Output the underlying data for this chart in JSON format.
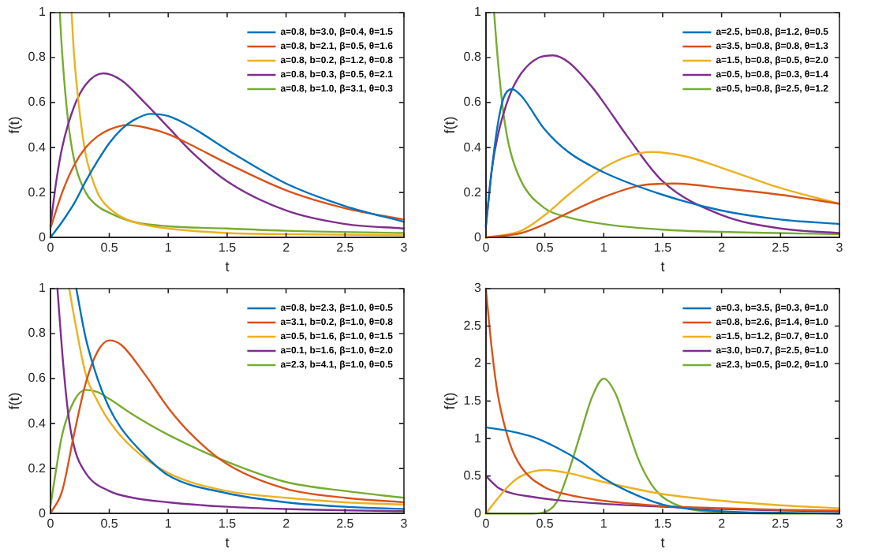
{
  "chart_data": [
    {
      "type": "line",
      "xlabel": "t",
      "ylabel": "f(t)",
      "xlim": [
        0,
        3
      ],
      "xticks": [
        0,
        0.5,
        1,
        1.5,
        2,
        2.5,
        3
      ],
      "ylim": [
        0,
        1
      ],
      "yticks": [
        0,
        0.2,
        0.4,
        0.6,
        0.8,
        1
      ],
      "legend": "top right",
      "marker": "none",
      "series": [
        {
          "name": "a=0.8, b=3.0, β=0.4, θ=1.5",
          "color": "#0072bd",
          "x": [
            0,
            0.1,
            0.2,
            0.3,
            0.4,
            0.5,
            0.6,
            0.7,
            0.85,
            1.0,
            1.2,
            1.5,
            2.0,
            2.5,
            3.0
          ],
          "values": [
            0,
            0.07,
            0.15,
            0.25,
            0.34,
            0.42,
            0.48,
            0.52,
            0.55,
            0.54,
            0.49,
            0.39,
            0.24,
            0.14,
            0.07
          ]
        },
        {
          "name": "a=0.8, b=2.1, β=0.5, θ=1.6",
          "color": "#d95319",
          "x": [
            0,
            0.1,
            0.2,
            0.3,
            0.4,
            0.5,
            0.65,
            0.8,
            1.0,
            1.2,
            1.5,
            2.0,
            2.5,
            3.0
          ],
          "values": [
            0.04,
            0.2,
            0.32,
            0.4,
            0.45,
            0.48,
            0.5,
            0.49,
            0.46,
            0.41,
            0.33,
            0.21,
            0.13,
            0.08
          ]
        },
        {
          "name": "a=0.8, b=0.2, β=1.2, θ=0.8",
          "color": "#edb120",
          "x": [
            0.18,
            0.2,
            0.25,
            0.3,
            0.4,
            0.5,
            0.7,
            1.0,
            1.5,
            2.0,
            3.0
          ],
          "values": [
            1.0,
            0.82,
            0.55,
            0.37,
            0.2,
            0.13,
            0.07,
            0.04,
            0.02,
            0.015,
            0.01
          ]
        },
        {
          "name": "a=0.8, b=0.3, β=0.5, θ=2.1",
          "color": "#7e2f8e",
          "x": [
            0,
            0.05,
            0.1,
            0.2,
            0.3,
            0.45,
            0.6,
            0.8,
            1.0,
            1.2,
            1.5,
            2.0,
            2.5,
            3.0
          ],
          "values": [
            0.05,
            0.25,
            0.4,
            0.58,
            0.68,
            0.73,
            0.7,
            0.6,
            0.49,
            0.38,
            0.25,
            0.12,
            0.06,
            0.04
          ]
        },
        {
          "name": "a=0.8, b=1.0, β=3.1, θ=0.3",
          "color": "#77ac30",
          "x": [
            0.08,
            0.1,
            0.15,
            0.2,
            0.3,
            0.4,
            0.5,
            0.7,
            1.0,
            1.5,
            2.0,
            3.0
          ],
          "values": [
            1.0,
            0.82,
            0.52,
            0.35,
            0.2,
            0.14,
            0.11,
            0.07,
            0.05,
            0.04,
            0.03,
            0.02
          ]
        }
      ]
    },
    {
      "type": "line",
      "xlabel": "t",
      "ylabel": "f(t)",
      "xlim": [
        0,
        3
      ],
      "xticks": [
        0,
        0.5,
        1,
        1.5,
        2,
        2.5,
        3
      ],
      "ylim": [
        0,
        1
      ],
      "yticks": [
        0,
        0.2,
        0.4,
        0.6,
        0.8,
        1
      ],
      "legend": "top right",
      "marker": "none",
      "series": [
        {
          "name": "a=2.5, b=0.8, β=1.2, θ=0.5",
          "color": "#0072bd",
          "x": [
            0,
            0.05,
            0.1,
            0.15,
            0.22,
            0.3,
            0.5,
            0.7,
            1.0,
            1.5,
            2.0,
            2.5,
            3.0
          ],
          "values": [
            0.05,
            0.3,
            0.5,
            0.62,
            0.66,
            0.63,
            0.48,
            0.38,
            0.29,
            0.19,
            0.12,
            0.08,
            0.06
          ]
        },
        {
          "name": "a=3.5, b=0.8, β=0.8, θ=1.3",
          "color": "#d95319",
          "x": [
            0,
            0.3,
            0.5,
            0.7,
            1.0,
            1.3,
            1.6,
            2.0,
            2.5,
            3.0
          ],
          "values": [
            0,
            0.02,
            0.06,
            0.11,
            0.18,
            0.23,
            0.24,
            0.22,
            0.19,
            0.15
          ]
        },
        {
          "name": "a=1.5, b=0.8, β=0.5, θ=2.0",
          "color": "#edb120",
          "x": [
            0,
            0.3,
            0.5,
            0.7,
            1.0,
            1.2,
            1.4,
            1.7,
            2.0,
            2.5,
            3.0
          ],
          "values": [
            0,
            0.03,
            0.1,
            0.19,
            0.31,
            0.36,
            0.38,
            0.36,
            0.31,
            0.22,
            0.15
          ]
        },
        {
          "name": "a=0.5, b=0.8, β=0.3, θ=1.4",
          "color": "#7e2f8e",
          "x": [
            0,
            0.05,
            0.1,
            0.2,
            0.3,
            0.45,
            0.57,
            0.7,
            0.9,
            1.0,
            1.2,
            1.5,
            2.0,
            2.5,
            3.0
          ],
          "values": [
            0.05,
            0.3,
            0.45,
            0.63,
            0.73,
            0.8,
            0.81,
            0.78,
            0.67,
            0.6,
            0.45,
            0.25,
            0.1,
            0.04,
            0.02
          ]
        },
        {
          "name": "a=0.5, b=0.8, β=2.5, θ=1.2",
          "color": "#77ac30",
          "x": [
            0.07,
            0.1,
            0.15,
            0.2,
            0.3,
            0.5,
            0.7,
            1.0,
            1.5,
            2.0,
            3.0
          ],
          "values": [
            1.0,
            0.8,
            0.55,
            0.4,
            0.25,
            0.13,
            0.09,
            0.06,
            0.035,
            0.025,
            0.015
          ]
        }
      ]
    },
    {
      "type": "line",
      "xlabel": "t",
      "ylabel": "f(t)",
      "xlim": [
        0,
        3
      ],
      "xticks": [
        0,
        0.5,
        1,
        1.5,
        2,
        2.5,
        3
      ],
      "ylim": [
        0,
        1
      ],
      "yticks": [
        0,
        0.2,
        0.4,
        0.6,
        0.8,
        1
      ],
      "legend": "top right",
      "marker": "none",
      "series": [
        {
          "name": "a=0.8, b=2.3, β=1.0, θ=0.5",
          "color": "#0072bd",
          "x": [
            0.22,
            0.3,
            0.4,
            0.5,
            0.6,
            0.8,
            1.0,
            1.5,
            2.0,
            2.5,
            3.0
          ],
          "values": [
            1.0,
            0.78,
            0.6,
            0.47,
            0.38,
            0.26,
            0.17,
            0.09,
            0.05,
            0.03,
            0.02
          ]
        },
        {
          "name": "a=3.1, b=0.2, β=1.0, θ=0.8",
          "color": "#d95319",
          "x": [
            0,
            0.1,
            0.2,
            0.3,
            0.4,
            0.5,
            0.6,
            0.8,
            1.0,
            1.2,
            1.5,
            2.0,
            2.5,
            3.0
          ],
          "values": [
            0,
            0.1,
            0.35,
            0.58,
            0.72,
            0.77,
            0.75,
            0.62,
            0.47,
            0.35,
            0.22,
            0.11,
            0.07,
            0.05
          ]
        },
        {
          "name": "a=0.5, b=1.6, β=1.0, θ=1.5",
          "color": "#edb120",
          "x": [
            0.16,
            0.2,
            0.3,
            0.4,
            0.5,
            0.7,
            1.0,
            1.5,
            2.0,
            2.5,
            3.0
          ],
          "values": [
            1.0,
            0.88,
            0.62,
            0.5,
            0.41,
            0.29,
            0.18,
            0.1,
            0.07,
            0.05,
            0.04
          ]
        },
        {
          "name": "a=0.1, b=1.6, β=1.0, θ=2.0",
          "color": "#7e2f8e",
          "x": [
            0.06,
            0.1,
            0.15,
            0.2,
            0.3,
            0.5,
            0.7,
            1.0,
            1.5,
            2.0,
            3.0
          ],
          "values": [
            1.0,
            0.72,
            0.45,
            0.3,
            0.18,
            0.1,
            0.07,
            0.05,
            0.03,
            0.02,
            0.01
          ]
        },
        {
          "name": "a=2.3, b=4.1, β=1.0, θ=0.5",
          "color": "#77ac30",
          "x": [
            0,
            0.05,
            0.1,
            0.2,
            0.3,
            0.4,
            0.5,
            0.7,
            1.0,
            1.5,
            2.0,
            2.5,
            3.0
          ],
          "values": [
            0.03,
            0.2,
            0.35,
            0.5,
            0.55,
            0.54,
            0.51,
            0.44,
            0.35,
            0.23,
            0.14,
            0.1,
            0.07
          ]
        }
      ]
    },
    {
      "type": "line",
      "xlabel": "t",
      "ylabel": "f(t)",
      "xlim": [
        0,
        3
      ],
      "xticks": [
        0,
        0.5,
        1,
        1.5,
        2,
        2.5,
        3
      ],
      "ylim": [
        0,
        3
      ],
      "yticks": [
        0,
        0.5,
        1,
        1.5,
        2,
        2.5,
        3
      ],
      "legend": "top right",
      "marker": "none",
      "series": [
        {
          "name": "a=0.3, b=3.5, β=0.3, θ=1.0",
          "color": "#0072bd",
          "x": [
            0,
            0.2,
            0.4,
            0.6,
            0.8,
            1.0,
            1.2,
            1.5,
            2.0,
            2.5,
            3.0
          ],
          "values": [
            1.15,
            1.1,
            1.02,
            0.88,
            0.7,
            0.47,
            0.3,
            0.12,
            0.03,
            0.01,
            0
          ]
        },
        {
          "name": "a=0.8, b=2.6, β=1.4, θ=1.0",
          "color": "#d95319",
          "x": [
            0,
            0.05,
            0.1,
            0.2,
            0.3,
            0.5,
            0.7,
            1.0,
            1.5,
            2.0,
            2.5,
            3.0
          ],
          "values": [
            3.0,
            2.2,
            1.6,
            0.95,
            0.62,
            0.35,
            0.25,
            0.17,
            0.1,
            0.07,
            0.05,
            0.04
          ]
        },
        {
          "name": "a=1.5, b=1.2, β=0.7, θ=1.0",
          "color": "#edb120",
          "x": [
            0,
            0.1,
            0.2,
            0.3,
            0.5,
            0.7,
            1.0,
            1.5,
            2.0,
            2.5,
            3.0
          ],
          "values": [
            0,
            0.2,
            0.38,
            0.5,
            0.58,
            0.54,
            0.42,
            0.26,
            0.17,
            0.11,
            0.07
          ]
        },
        {
          "name": "a=3.0, b=0.7, β=2.5, θ=1.0",
          "color": "#7e2f8e",
          "x": [
            0,
            0.1,
            0.2,
            0.4,
            0.6,
            1.0,
            1.5,
            2.0,
            2.5,
            3.0
          ],
          "values": [
            0.5,
            0.35,
            0.28,
            0.22,
            0.18,
            0.13,
            0.09,
            0.06,
            0.04,
            0.03
          ]
        },
        {
          "name": "a=2.3, b=0.5, β=0.2, θ=1.0",
          "color": "#77ac30",
          "x": [
            0,
            0.4,
            0.5,
            0.6,
            0.7,
            0.8,
            0.9,
            1.0,
            1.1,
            1.2,
            1.3,
            1.4,
            1.5,
            1.7,
            2.0,
            2.5,
            3.0
          ],
          "values": [
            0,
            0,
            0.02,
            0.15,
            0.55,
            1.05,
            1.55,
            1.8,
            1.6,
            1.15,
            0.7,
            0.4,
            0.22,
            0.07,
            0.02,
            0,
            0
          ]
        }
      ]
    }
  ]
}
